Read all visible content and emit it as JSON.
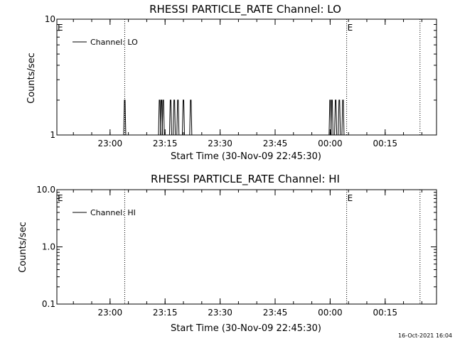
{
  "chart_data": [
    {
      "type": "line",
      "title": "RHESSI PARTICLE_RATE Channel: LO",
      "xlabel": "Start Time (30-Nov-09 22:45:30)",
      "ylabel": "Counts/sec",
      "y_scale": "log",
      "ylim": [
        1,
        10
      ],
      "y_ticks": [
        "1",
        "10"
      ],
      "xlim": [
        "22:45:30",
        "00:29:00"
      ],
      "x_ticks": [
        "23:00",
        "23:15",
        "23:30",
        "23:45",
        "00:00",
        "00:15"
      ],
      "grid": false,
      "legend": {
        "entries": [
          "Channel: LO"
        ],
        "placement": "top-left"
      },
      "event_markers": [
        {
          "label": "E",
          "time": "22:45:30"
        },
        {
          "label": "",
          "time": "23:04:00"
        },
        {
          "label": "E",
          "time": "00:04:30"
        },
        {
          "label": "",
          "time": "00:24:30"
        }
      ],
      "series": [
        {
          "name": "Channel: LO",
          "spikes": [
            {
              "t": "23:04:00",
              "v": 2
            },
            {
              "t": "23:13:30",
              "v": 2
            },
            {
              "t": "23:14:00",
              "v": 2
            },
            {
              "t": "23:14:30",
              "v": 2
            },
            {
              "t": "23:16:30",
              "v": 2
            },
            {
              "t": "23:17:30",
              "v": 2
            },
            {
              "t": "23:18:30",
              "v": 2
            },
            {
              "t": "23:20:00",
              "v": 2
            },
            {
              "t": "23:22:00",
              "v": 2
            },
            {
              "t": "00:00:00",
              "v": 2
            },
            {
              "t": "00:00:30",
              "v": 2
            },
            {
              "t": "00:01:30",
              "v": 2
            },
            {
              "t": "00:02:30",
              "v": 2
            },
            {
              "t": "00:03:30",
              "v": 2
            }
          ]
        }
      ]
    },
    {
      "type": "line",
      "title": "RHESSI PARTICLE_RATE Channel: HI",
      "xlabel": "Start Time (30-Nov-09 22:45:30)",
      "ylabel": "Counts/sec",
      "y_scale": "log",
      "ylim": [
        0.1,
        10
      ],
      "y_ticks": [
        "0.1",
        "1.0",
        "10.0"
      ],
      "xlim": [
        "22:45:30",
        "00:29:00"
      ],
      "x_ticks": [
        "23:00",
        "23:15",
        "23:30",
        "23:45",
        "00:00",
        "00:15"
      ],
      "grid": false,
      "legend": {
        "entries": [
          "Channel: HI"
        ],
        "placement": "top-left"
      },
      "event_markers": [
        {
          "label": "E",
          "time": "22:45:30"
        },
        {
          "label": "",
          "time": "23:04:00"
        },
        {
          "label": "E",
          "time": "00:04:30"
        },
        {
          "label": "",
          "time": "00:24:30"
        }
      ],
      "series": [
        {
          "name": "Channel: HI",
          "spikes": []
        }
      ]
    }
  ],
  "footer": {
    "timestamp": "16-Oct-2021 16:04"
  }
}
